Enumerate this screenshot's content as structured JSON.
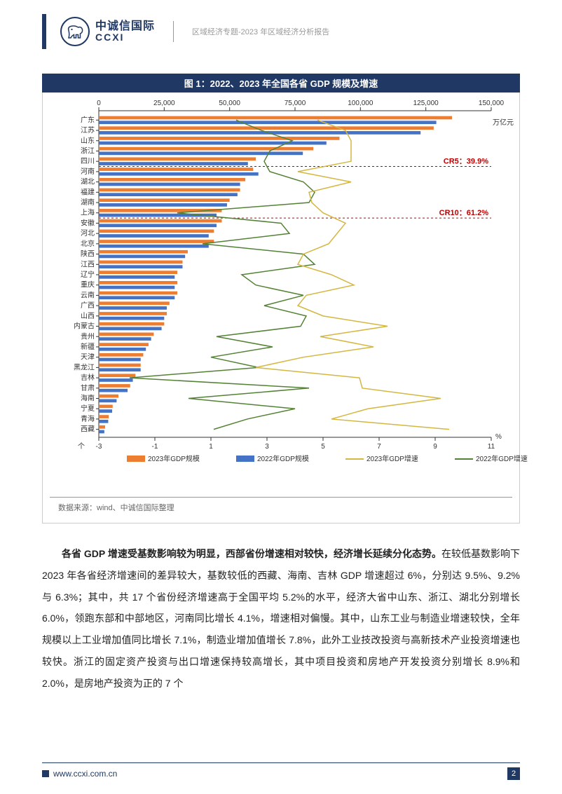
{
  "header": {
    "logo_cn": "中诚信国际",
    "logo_en": "CCXI",
    "subtitle": "区域经济专题-2023 年区域经济分析报告"
  },
  "chart": {
    "title": "图 1：2022、2023 年全国各省 GDP 规模及增速",
    "type": "bar+line",
    "top_axis_label_unit": "万亿元",
    "top_ticks": [
      0,
      25000,
      50000,
      75000,
      100000,
      125000,
      150000
    ],
    "top_tick_labels": [
      "0",
      "25,000",
      "50,000",
      "75,000",
      "100,000",
      "125,000",
      "150,000"
    ],
    "bottom_ticks": [
      -3,
      -1,
      1,
      3,
      5,
      7,
      9,
      11
    ],
    "bottom_unit": "%",
    "bottom_note": "个",
    "cr5_label": "CR5：39.9%",
    "cr10_label": "CR10：61.2%",
    "provinces": [
      "广东",
      "江苏",
      "山东",
      "浙江",
      "四川",
      "河南",
      "湖北",
      "福建",
      "湖南",
      "上海",
      "安徽",
      "河北",
      "北京",
      "陕西",
      "江西",
      "辽宁",
      "重庆",
      "云南",
      "广西",
      "山西",
      "内蒙古",
      "贵州",
      "新疆",
      "天津",
      "黑龙江",
      "吉林",
      "甘肃",
      "海南",
      "宁夏",
      "青海",
      "西藏"
    ],
    "gdp_2023": [
      135000,
      128000,
      92000,
      82000,
      60000,
      59000,
      56000,
      54000,
      50000,
      47000,
      47000,
      44000,
      44000,
      34000,
      32000,
      30000,
      30000,
      30000,
      27000,
      26000,
      25000,
      21000,
      19000,
      17000,
      16000,
      14000,
      12000,
      7500,
      5300,
      3800,
      2400
    ],
    "gdp_2022": [
      129000,
      123000,
      87000,
      78000,
      57000,
      61000,
      54000,
      53000,
      49000,
      45000,
      45000,
      42000,
      42000,
      33000,
      32000,
      29000,
      29000,
      29000,
      26000,
      25000,
      24000,
      20000,
      18000,
      16000,
      16000,
      13000,
      11000,
      6800,
      5100,
      3600,
      2100
    ],
    "growth_2023": [
      4.8,
      5.8,
      6.0,
      6.0,
      6.0,
      4.1,
      6.0,
      4.5,
      4.6,
      5.0,
      5.8,
      5.5,
      5.2,
      4.3,
      4.1,
      5.3,
      6.1,
      4.4,
      4.1,
      5.0,
      7.3,
      4.9,
      6.8,
      4.3,
      2.6,
      6.3,
      6.4,
      9.2,
      6.6,
      5.3,
      9.5
    ],
    "growth_2022": [
      1.9,
      2.8,
      3.9,
      3.1,
      2.9,
      3.1,
      4.3,
      4.7,
      4.5,
      -0.2,
      3.5,
      3.8,
      0.7,
      4.3,
      4.7,
      2.1,
      2.6,
      4.3,
      2.9,
      4.4,
      4.2,
      1.2,
      3.2,
      1.0,
      2.7,
      -1.9,
      4.5,
      0.2,
      4.0,
      2.3,
      1.1
    ],
    "legend": {
      "s2023gdp": "2023年GDP规模",
      "s2022gdp": "2022年GDP规模",
      "s2023growth": "2023年GDP增速",
      "s2022growth": "2022年GDP增速"
    },
    "colors": {
      "bar_2023": "#ed7d31",
      "bar_2022": "#4472c4",
      "line_2023": "#d4b740",
      "line_2022": "#548235",
      "cr_text": "#c00000",
      "cr_line": "#c00000",
      "axis": "#333333",
      "grid": "#888888"
    },
    "source": "数据来源：wind、中诚信国际整理"
  },
  "body": {
    "para1_bold": "各省 GDP 增速受基数影响较为明显，西部省份增速相对较快，经济增长延续分化态势。",
    "para1_rest": "在较低基数影响下 2023 年各省经济增速间的差异较大，基数较低的西藏、海南、吉林 GDP 增速超过 6%，分别达 9.5%、9.2%与 6.3%；其中，共 17 个省份经济增速高于全国平均 5.2%的水平，经济大省中山东、浙江、湖北分别增长 6.0%，领跑东部和中部地区，河南同比增长 4.1%，增速相对偏慢。其中，山东工业与制造业增速较快，全年规模以上工业增加值同比增长 7.1%，制造业增加值增长 7.8%，此外工业技改投资与高新技术产业投资增速也较快。浙江的固定资产投资与出口增速保持较高增长，其中项目投资和房地产开发投资分别增长 8.9%和 2.0%，是房地产投资为正的 7 个"
  },
  "footer": {
    "url": "www.ccxi.com.cn",
    "page": "2"
  }
}
